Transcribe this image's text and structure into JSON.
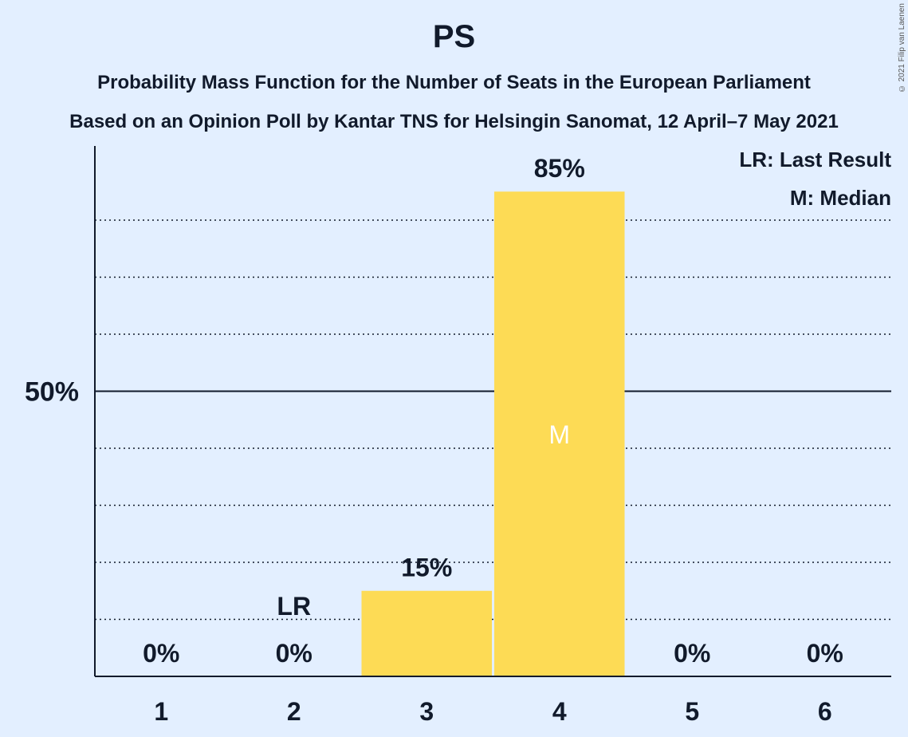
{
  "chart_data": {
    "type": "bar",
    "title": "PS",
    "subtitle_lines": [
      "Probability Mass Function for the Number of Seats in the European Parliament",
      "Based on an Opinion Poll by Kantar TNS for Helsingin Sanomat, 12 April–7 May 2021"
    ],
    "categories": [
      "1",
      "2",
      "3",
      "4",
      "5",
      "6"
    ],
    "values": [
      0,
      0,
      15,
      85,
      0,
      0
    ],
    "value_labels": [
      "0%",
      "0%",
      "15%",
      "85%",
      "0%",
      "0%"
    ],
    "ylim": [
      0,
      93
    ],
    "major_ticks": [
      {
        "value": 50,
        "label": "50%"
      }
    ],
    "minor_grid": [
      10,
      20,
      30,
      40,
      60,
      70,
      80
    ],
    "last_result": {
      "category": "2",
      "label": "LR"
    },
    "median": {
      "category": "4",
      "label": "M"
    },
    "legend": [
      "LR: Last Result",
      "M: Median"
    ],
    "legend_position": "top-right",
    "bar_color": "#fddb55",
    "axis_color": "#111a2b"
  },
  "copyright": "© 2021 Filip van Laenen"
}
